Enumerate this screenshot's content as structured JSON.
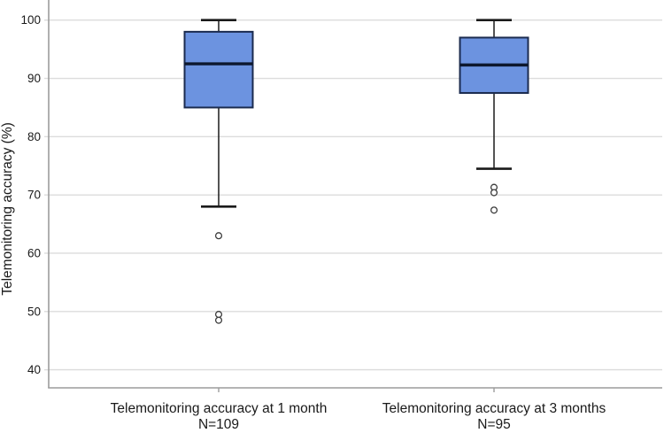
{
  "chart_data": {
    "type": "boxplot",
    "title": "",
    "xlabel": "",
    "ylabel": "Telemonitoring accuracy (%)",
    "ylim": [
      36.9,
      103.45
    ],
    "yticks": [
      40,
      50,
      60,
      70,
      80,
      90,
      100
    ],
    "grid": true,
    "legend": null,
    "categories": [
      "Telemonitoring accuracy at 1 month",
      "Telemonitoring accuracy at 3 months"
    ],
    "series": [
      {
        "label": "Telemonitoring accuracy at 1 month",
        "n_label": "N=109",
        "whisker_high": 100,
        "q3": 98,
        "median": 92.5,
        "q1": 85,
        "whisker_low": 68,
        "outliers": [
          63,
          49.5,
          48.5
        ]
      },
      {
        "label": "Telemonitoring accuracy at 3 months",
        "n_label": "N=95",
        "whisker_high": 100,
        "q3": 97,
        "median": 92.3,
        "q1": 87.5,
        "whisker_low": 74.5,
        "outliers": [
          71.3,
          70.4,
          67.4
        ]
      }
    ],
    "colors": {
      "box_fill": "#6c93e0",
      "box_border": "#1b2b4f",
      "median": "#0d182e",
      "whisker": "#1a1a1a",
      "outlier": "#3c3c3c",
      "gridline": "#dcdcdc",
      "axis": "#9c9c9c",
      "text": "#1a1a1a"
    }
  }
}
